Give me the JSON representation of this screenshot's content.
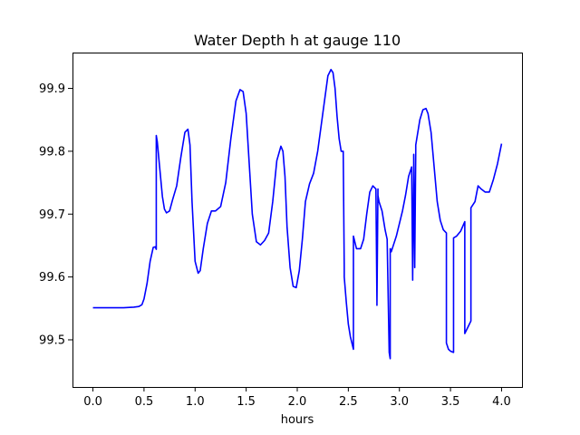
{
  "chart_data": {
    "type": "line",
    "title": "Water Depth h at gauge 110",
    "xlabel": "hours",
    "ylabel": "",
    "xlim": [
      -0.2,
      4.2
    ],
    "ylim": [
      99.425,
      99.957
    ],
    "xticks": [
      0.0,
      0.5,
      1.0,
      1.5,
      2.0,
      2.5,
      3.0,
      3.5,
      4.0
    ],
    "xtick_labels": [
      "0.0",
      "0.5",
      "1.0",
      "1.5",
      "2.0",
      "2.5",
      "3.0",
      "3.5",
      "4.0"
    ],
    "yticks": [
      99.5,
      99.6,
      99.7,
      99.8,
      99.9
    ],
    "ytick_labels": [
      "99.5",
      "99.6",
      "99.7",
      "99.8",
      "99.9"
    ],
    "grid": false,
    "line_color": "#0000ff",
    "series": [
      {
        "x": [
          0.0,
          0.1,
          0.2,
          0.3,
          0.4,
          0.45,
          0.48,
          0.5,
          0.53,
          0.56,
          0.59,
          0.61,
          0.62,
          0.62,
          0.63,
          0.65,
          0.68,
          0.7,
          0.72,
          0.75,
          0.78,
          0.82,
          0.86,
          0.9,
          0.93,
          0.95,
          0.97,
          1.0,
          1.03,
          1.05,
          1.08,
          1.12,
          1.16,
          1.2,
          1.25,
          1.3,
          1.35,
          1.4,
          1.44,
          1.47,
          1.5,
          1.53,
          1.56,
          1.6,
          1.64,
          1.68,
          1.72,
          1.76,
          1.8,
          1.84,
          1.86,
          1.88,
          1.9,
          1.93,
          1.96,
          1.99,
          2.02,
          2.05,
          2.08,
          2.12,
          2.16,
          2.2,
          2.25,
          2.3,
          2.33,
          2.35,
          2.37,
          2.39,
          2.41,
          2.43,
          2.45,
          2.46,
          2.46,
          2.48,
          2.5,
          2.52,
          2.55,
          2.55,
          2.58,
          2.62,
          2.65,
          2.68,
          2.71,
          2.74,
          2.77,
          2.78,
          2.78,
          2.79,
          2.79,
          2.8,
          2.83,
          2.86,
          2.88,
          2.9,
          2.91,
          2.91,
          2.92,
          2.92,
          2.94,
          2.97,
          3.0,
          3.03,
          3.06,
          3.09,
          3.12,
          3.13,
          3.13,
          3.14,
          3.14,
          3.15,
          3.15,
          3.16,
          3.16,
          3.18,
          3.2,
          3.23,
          3.26,
          3.28,
          3.31,
          3.34,
          3.37,
          3.4,
          3.43,
          3.46,
          3.46,
          3.48,
          3.5,
          3.53,
          3.53,
          3.56,
          3.6,
          3.64,
          3.64,
          3.67,
          3.7,
          3.7,
          3.74,
          3.77,
          3.8,
          3.84,
          3.88,
          3.92,
          3.96,
          4.0
        ],
        "y": [
          99.551,
          99.551,
          99.551,
          99.551,
          99.552,
          99.553,
          99.556,
          99.565,
          99.59,
          99.625,
          99.647,
          99.648,
          99.644,
          99.825,
          99.815,
          99.78,
          99.728,
          99.708,
          99.702,
          99.705,
          99.723,
          99.745,
          99.79,
          99.83,
          99.835,
          99.81,
          99.72,
          99.625,
          99.606,
          99.61,
          99.645,
          99.685,
          99.705,
          99.705,
          99.712,
          99.75,
          99.82,
          99.88,
          99.898,
          99.895,
          99.86,
          99.78,
          99.7,
          99.656,
          99.651,
          99.658,
          99.67,
          99.72,
          99.785,
          99.808,
          99.8,
          99.76,
          99.68,
          99.615,
          99.585,
          99.583,
          99.61,
          99.66,
          99.72,
          99.748,
          99.765,
          99.8,
          99.86,
          99.92,
          99.93,
          99.925,
          99.9,
          99.855,
          99.82,
          99.8,
          99.8,
          99.615,
          99.6,
          99.56,
          99.525,
          99.505,
          99.485,
          99.665,
          99.645,
          99.645,
          99.66,
          99.7,
          99.735,
          99.745,
          99.74,
          99.56,
          99.555,
          99.74,
          99.73,
          99.72,
          99.705,
          99.675,
          99.66,
          99.48,
          99.47,
          99.645,
          99.643,
          99.64,
          99.65,
          99.665,
          99.685,
          99.705,
          99.73,
          99.76,
          99.775,
          99.595,
          99.6,
          99.77,
          99.795,
          99.615,
          99.62,
          99.8,
          99.81,
          99.83,
          99.85,
          99.866,
          99.868,
          99.86,
          99.83,
          99.775,
          99.72,
          99.69,
          99.675,
          99.67,
          99.495,
          99.485,
          99.482,
          99.48,
          99.662,
          99.665,
          99.673,
          99.688,
          99.51,
          99.52,
          99.53,
          99.71,
          99.72,
          99.745,
          99.74,
          99.735,
          99.735,
          99.755,
          99.78,
          99.812
        ]
      }
    ]
  }
}
